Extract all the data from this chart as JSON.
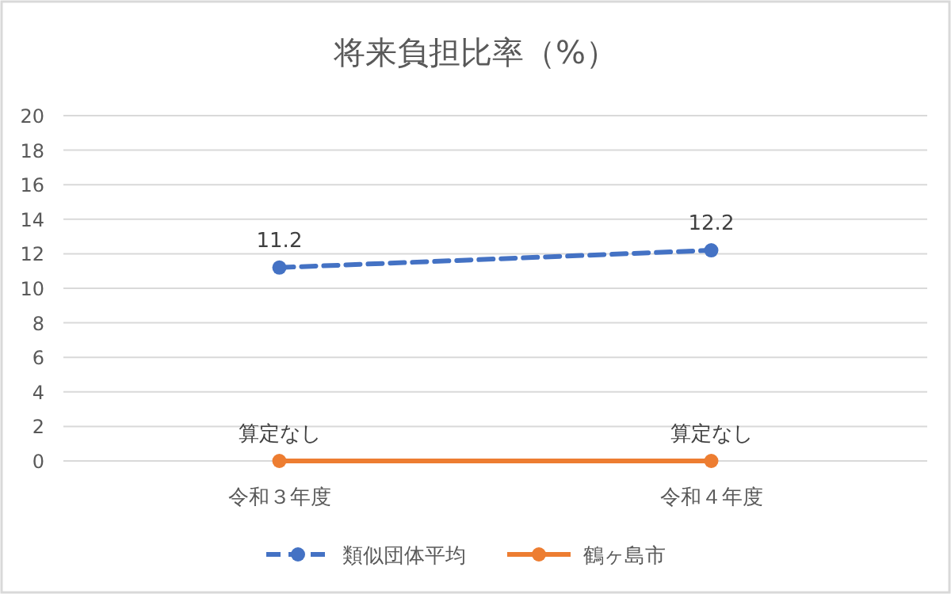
{
  "chart_data": {
    "type": "line",
    "title": "将来負担比率（%）",
    "categories": [
      "令和３年度",
      "令和４年度"
    ],
    "series": [
      {
        "name": "類似団体平均",
        "color": "#4472c4",
        "values": [
          11.2,
          12.2
        ],
        "line_style": "dashed",
        "value_labels": [
          "11.2",
          "12.2"
        ]
      },
      {
        "name": "鶴ヶ島市",
        "color": "#ed7d31",
        "values": [
          0,
          0
        ],
        "line_style": "solid",
        "value_labels": [
          "算定なし",
          "算定なし"
        ]
      }
    ],
    "ylim": [
      0,
      20
    ],
    "yticks": [
      0,
      2,
      4,
      6,
      8,
      10,
      12,
      14,
      16,
      18,
      20
    ],
    "grid": "y",
    "legend": "bottom",
    "marker": "circle"
  }
}
